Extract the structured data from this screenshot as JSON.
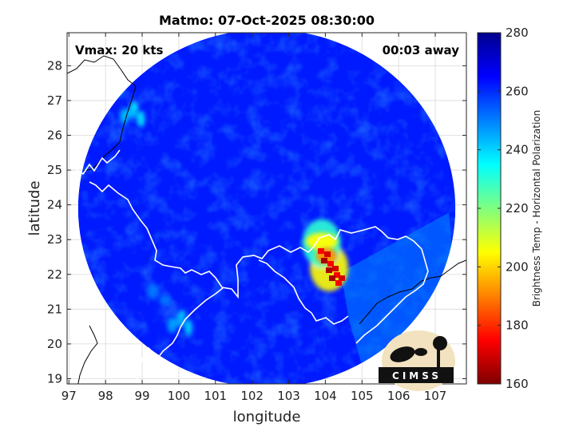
{
  "chart_data": {
    "type": "heatmap",
    "title": "Matmo: 07-Oct-2025 08:30:00",
    "xlabel": "longitude",
    "ylabel": "latitude",
    "xlim": [
      96.95,
      107.85
    ],
    "ylim": [
      18.85,
      28.95
    ],
    "xticks": [
      "97",
      "98",
      "99",
      "100",
      "101",
      "102",
      "103",
      "104",
      "105",
      "106",
      "107"
    ],
    "yticks": [
      "19",
      "20",
      "21",
      "22",
      "23",
      "24",
      "25",
      "26",
      "27",
      "28"
    ],
    "grid": true,
    "annotations": {
      "left": "Vmax: 20 kts",
      "right": "00:03 away"
    },
    "colorbar": {
      "label": "Brightness Temp - Horizontal Polarization",
      "min": 160,
      "max": 280,
      "ticks": [
        "280",
        "260",
        "240",
        "220",
        "200",
        "180",
        "160"
      ],
      "colormap": "jet",
      "colors": [
        "#7f0000",
        "#ff0000",
        "#ff8000",
        "#ffff00",
        "#80ff80",
        "#00ffff",
        "#0080ff",
        "#0000ff",
        "#00008f"
      ]
    },
    "swath": {
      "center": [
        102.4,
        23.9
      ],
      "radius_deg": 5.15,
      "background_value": 262
    },
    "features": [
      {
        "name": "storm core",
        "lon": 104.1,
        "lat": 22.2,
        "value": 175
      },
      {
        "name": "convective band",
        "lon": 103.9,
        "lat": 22.9,
        "value": 200
      },
      {
        "name": "coastal cells",
        "lon": 98.6,
        "lat": 26.8,
        "value": 235
      },
      {
        "name": "south-west cells",
        "lon": 99.9,
        "lat": 20.8,
        "value": 238
      },
      {
        "name": "warm sea sector",
        "lon": 105.3,
        "lat": 21.6,
        "value": 250
      }
    ],
    "logo": "CIMSS"
  }
}
